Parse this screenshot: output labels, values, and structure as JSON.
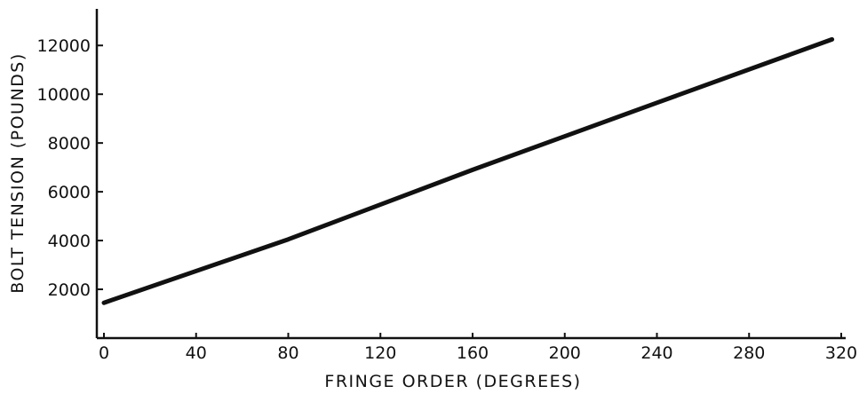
{
  "chart_data": {
    "type": "line",
    "title": "",
    "xlabel": "FRINGE ORDER (DEGREES)",
    "ylabel": "BOLT TENSION (POUNDS)",
    "xlim": [
      0,
      320
    ],
    "ylim": [
      0,
      13500
    ],
    "xticks": [
      0,
      40,
      80,
      120,
      160,
      200,
      240,
      280,
      320
    ],
    "xtick_labels": [
      "0",
      "40",
      "80",
      "120",
      "160",
      "200",
      "240",
      "280",
      "320"
    ],
    "yticks": [
      2000,
      4000,
      6000,
      8000,
      10000,
      12000
    ],
    "ytick_labels": [
      "2000",
      "4000",
      "6000",
      "8000",
      "10000",
      "12000"
    ],
    "grid": false,
    "series": [
      {
        "x": [
          0,
          80,
          160,
          240,
          316
        ],
        "y": [
          1450,
          4050,
          6900,
          9650,
          12250
        ]
      }
    ],
    "colors": {
      "line": "#111111",
      "axis": "#111111"
    }
  }
}
